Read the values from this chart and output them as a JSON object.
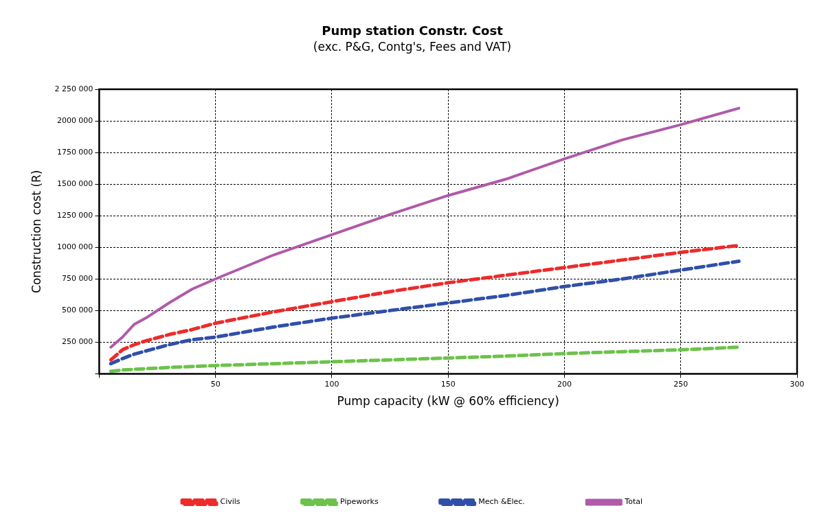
{
  "chart_data": {
    "type": "line",
    "title": "Pump station Constr. Cost",
    "subtitle": "(exc. P&G, Contg's, Fees and VAT)",
    "xlabel": "Pump capacity (kW @ 60% efficiency)",
    "ylabel": "Construction cost (R)",
    "x": [
      5,
      10,
      15,
      20,
      30,
      40,
      50,
      75,
      100,
      125,
      150,
      175,
      200,
      225,
      250,
      275
    ],
    "series": [
      {
        "name": "Civils",
        "color": "#ee2a2a",
        "line_style": "dashed",
        "values": [
          110000,
          190000,
          230000,
          260000,
          310000,
          350000,
          400000,
          490000,
          570000,
          650000,
          720000,
          780000,
          840000,
          900000,
          960000,
          1015000
        ]
      },
      {
        "name": "Pipeworks",
        "color": "#6cc24a",
        "line_style": "dashed",
        "values": [
          20000,
          30000,
          35000,
          40000,
          50000,
          58000,
          65000,
          80000,
          95000,
          110000,
          125000,
          140000,
          160000,
          175000,
          190000,
          210000
        ]
      },
      {
        "name": "Mech &Elec.",
        "color": "#2f4fa8",
        "line_style": "dashed",
        "values": [
          80000,
          120000,
          155000,
          180000,
          230000,
          270000,
          290000,
          370000,
          440000,
          500000,
          560000,
          620000,
          690000,
          750000,
          820000,
          890000
        ]
      },
      {
        "name": "Total",
        "color": "#b05aaa",
        "line_style": "solid",
        "values": [
          210000,
          290000,
          390000,
          440000,
          560000,
          670000,
          750000,
          940000,
          1100000,
          1260000,
          1410000,
          1540000,
          1700000,
          1850000,
          1970000,
          2100000
        ]
      }
    ],
    "xlim": [
      0,
      300
    ],
    "xticks": [
      {
        "value": 0,
        "label": null
      },
      50,
      100,
      150,
      200,
      250,
      300
    ],
    "ylim": [
      0,
      2250000
    ],
    "yticks": [
      {
        "value": 0,
        "label": null
      },
      {
        "value": 250000,
        "label": "250 000"
      },
      {
        "value": 500000,
        "label": "500 000"
      },
      {
        "value": 750000,
        "label": "750 000"
      },
      {
        "value": 1000000,
        "label": "1000 000"
      },
      {
        "value": 1250000,
        "label": "1250 000"
      },
      {
        "value": 1500000,
        "label": "1500 000"
      },
      {
        "value": 1750000,
        "label": "1750 000"
      },
      {
        "value": 2000000,
        "label": "2000 000"
      },
      {
        "value": 2250000,
        "label": "2 250 000"
      }
    ],
    "grid": true,
    "legend": "bottom",
    "marker": "none"
  }
}
